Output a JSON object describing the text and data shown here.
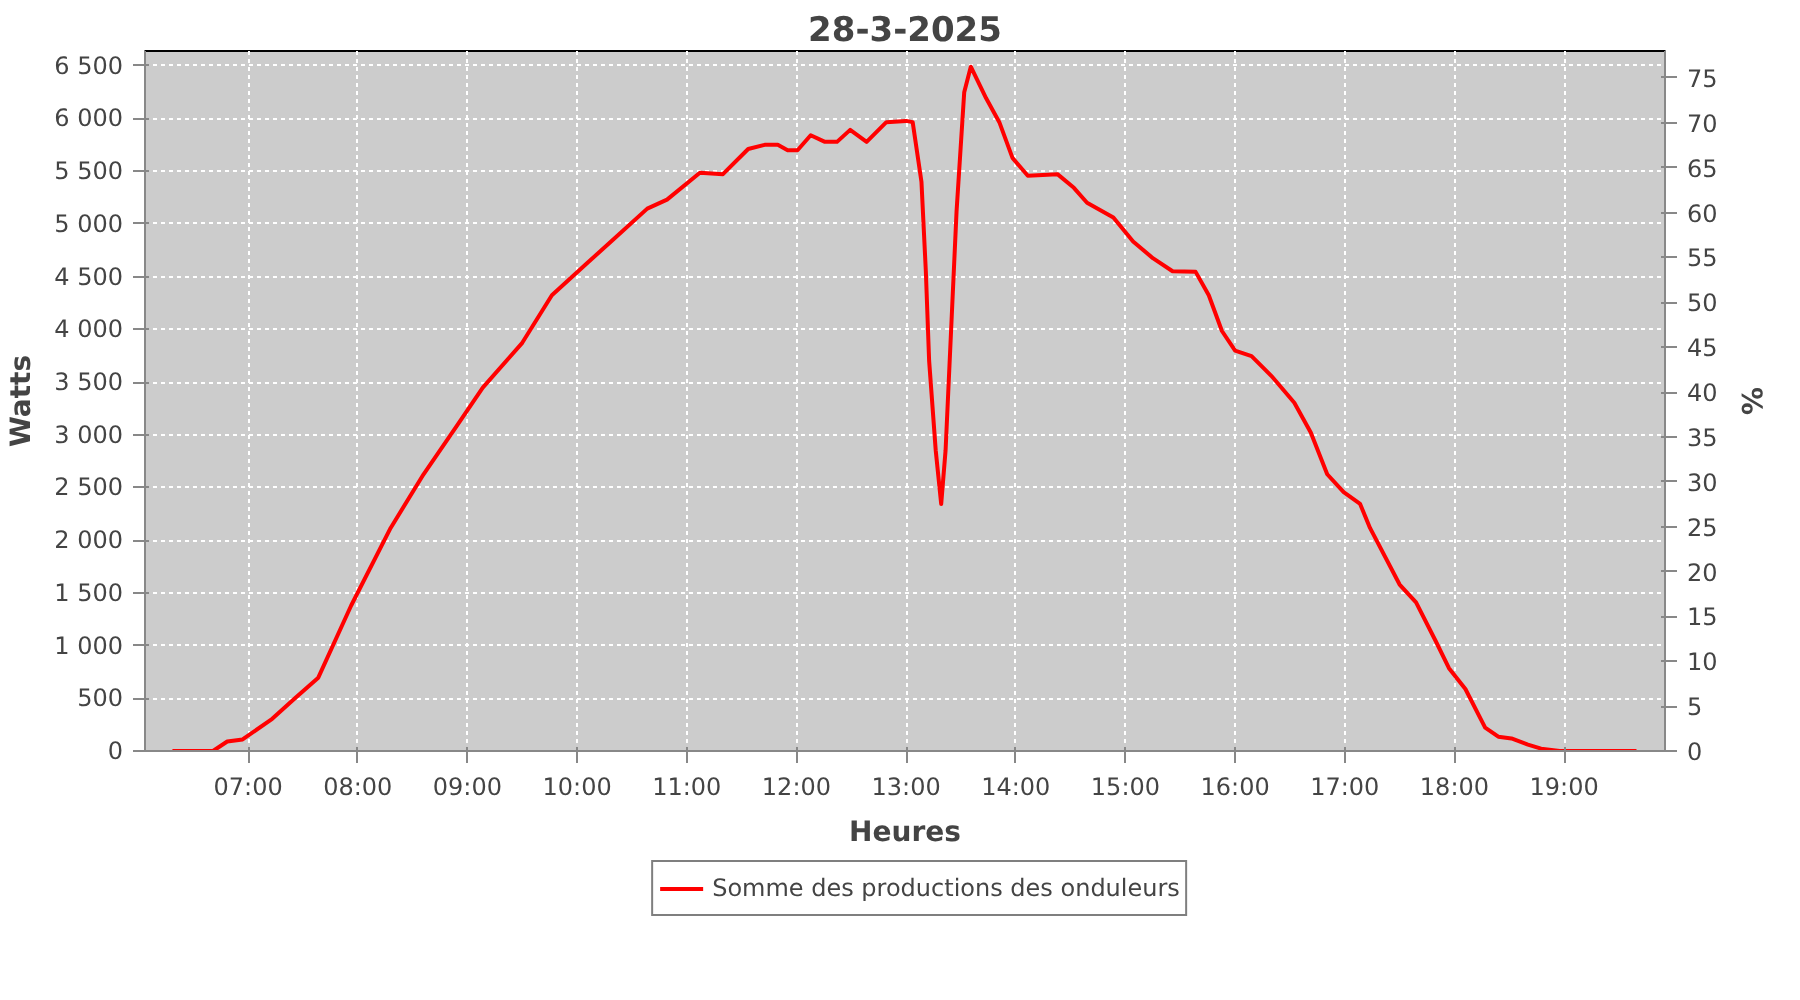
{
  "chart_data": {
    "type": "line",
    "title": "28-3-2025",
    "xlabel": "Heures",
    "ylabel": "Watts",
    "y2label": "%",
    "xlim": [
      6.06,
      19.92
    ],
    "ylim": [
      0,
      6640
    ],
    "y2lim": [
      0,
      78
    ],
    "xticks": [
      {
        "value": 7,
        "label": "07:00"
      },
      {
        "value": 8,
        "label": "08:00"
      },
      {
        "value": 9,
        "label": "09:00"
      },
      {
        "value": 10,
        "label": "10:00"
      },
      {
        "value": 11,
        "label": "11:00"
      },
      {
        "value": 12,
        "label": "12:00"
      },
      {
        "value": 13,
        "label": "13:00"
      },
      {
        "value": 14,
        "label": "14:00"
      },
      {
        "value": 15,
        "label": "15:00"
      },
      {
        "value": 16,
        "label": "16:00"
      },
      {
        "value": 17,
        "label": "17:00"
      },
      {
        "value": 18,
        "label": "18:00"
      },
      {
        "value": 19,
        "label": "19:00"
      }
    ],
    "yticks": [
      0,
      500,
      {
        "value": 1000,
        "label": "1 000"
      },
      {
        "value": 1500,
        "label": "1 500"
      },
      {
        "value": 2000,
        "label": "2 000"
      },
      {
        "value": 2500,
        "label": "2 500"
      },
      {
        "value": 3000,
        "label": "3 000"
      },
      {
        "value": 3500,
        "label": "3 500"
      },
      {
        "value": 4000,
        "label": "4 000"
      },
      {
        "value": 4500,
        "label": "4 500"
      },
      {
        "value": 5000,
        "label": "5 000"
      },
      {
        "value": 5500,
        "label": "5 500"
      },
      {
        "value": 6000,
        "label": "6 000"
      },
      {
        "value": 6500,
        "label": "6 500"
      }
    ],
    "y2ticks": [
      0,
      5,
      10,
      15,
      20,
      25,
      30,
      35,
      40,
      45,
      50,
      55,
      60,
      65,
      70,
      75
    ],
    "grid": true,
    "legend": "bottom",
    "marker": "none",
    "line_style": "solid",
    "series": [
      {
        "name": "Somme des productions des onduleurs",
        "color": "#ff0000",
        "x": [
          6.31,
          6.68,
          6.81,
          6.95,
          7.22,
          7.43,
          7.64,
          7.94,
          8.3,
          8.6,
          8.9,
          9.14,
          9.5,
          9.77,
          10.1,
          10.34,
          10.64,
          10.82,
          11.12,
          11.33,
          11.56,
          11.71,
          11.83,
          11.92,
          12.01,
          12.13,
          12.26,
          12.37,
          12.49,
          12.64,
          12.82,
          13.0,
          13.06,
          13.14,
          13.18,
          13.21,
          13.27,
          13.32,
          13.36,
          13.41,
          13.46,
          13.53,
          13.59,
          13.73,
          13.85,
          13.97,
          14.11,
          14.38,
          14.53,
          14.65,
          14.89,
          15.07,
          15.25,
          15.43,
          15.64,
          15.76,
          15.88,
          16.0,
          16.15,
          16.33,
          16.54,
          16.69,
          16.84,
          16.99,
          17.14,
          17.23,
          17.5,
          17.65,
          17.83,
          17.95,
          18.1,
          18.28,
          18.4,
          18.52,
          18.67,
          18.79,
          18.96,
          19.66
        ],
        "values": [
          0,
          0,
          90,
          110,
          305,
          503,
          696,
          1380,
          2116,
          2625,
          3079,
          3447,
          3872,
          4323,
          4636,
          4861,
          5145,
          5230,
          5485,
          5472,
          5710,
          5750,
          5750,
          5699,
          5699,
          5841,
          5778,
          5778,
          5892,
          5778,
          5965,
          5977,
          5965,
          5400,
          4551,
          3702,
          2853,
          2343,
          2853,
          3984,
          5116,
          6249,
          6491,
          6191,
          5965,
          5626,
          5456,
          5472,
          5342,
          5201,
          5060,
          4833,
          4675,
          4551,
          4545,
          4323,
          3984,
          3797,
          3746,
          3559,
          3304,
          3022,
          2625,
          2455,
          2343,
          2116,
          1579,
          1409,
          1041,
          786,
          588,
          221,
          136,
          119,
          61,
          22,
          0,
          0
        ]
      }
    ]
  }
}
